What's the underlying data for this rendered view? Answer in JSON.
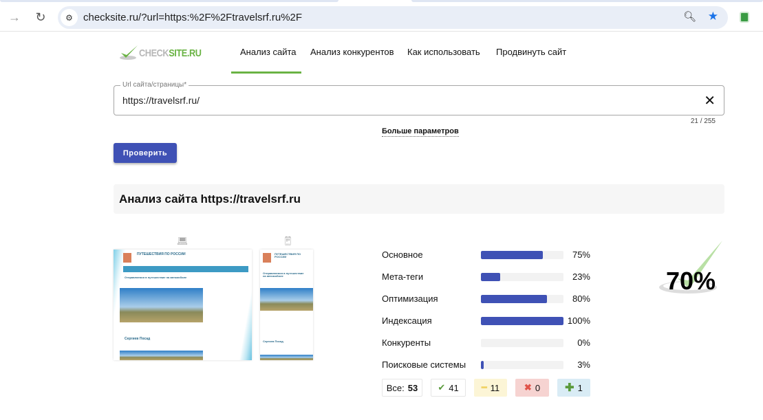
{
  "browser": {
    "url": "checksite.ru/?url=https:%2F%2Ftravelsrf.ru%2F",
    "icons": [
      "back-arrow-icon",
      "reload-icon",
      "site-info-icon",
      "zoom-icon",
      "bookmark-star-icon",
      "extension-icon"
    ],
    "accent": "#1a73e8"
  },
  "logo": {
    "prefix": "CHECK",
    "suffix": "SITE.RU"
  },
  "nav": {
    "items": [
      {
        "label": "Анализ сайта",
        "active": true
      },
      {
        "label": "Анализ конкурентов"
      },
      {
        "label": "Как использовать"
      },
      {
        "label": "Продвинуть сайт"
      }
    ]
  },
  "form": {
    "label": "Url сайта/страницы*",
    "value": "https://travelsrf.ru/",
    "counter": "21 / 255",
    "more": "Больше параметров",
    "submit": "Проверить"
  },
  "result": {
    "title": "Анализ сайта https://travelsrf.ru",
    "score": "70%",
    "preview": {
      "site_title": "ПУТЕШЕСТВИЯ ПО РОССИИ",
      "post1": "Отправляемся в путешествие на автомобиле",
      "post2": "Сергиев Посад"
    },
    "categories": [
      {
        "label": "Основное",
        "value": 75,
        "text": "75%"
      },
      {
        "label": "Мета-теги",
        "value": 23,
        "text": "23%"
      },
      {
        "label": "Оптимизация",
        "value": 80,
        "text": "80%"
      },
      {
        "label": "Индексация",
        "value": 100,
        "text": "100%"
      },
      {
        "label": "Конкуренты",
        "value": 0,
        "text": "0%"
      },
      {
        "label": "Поисковые системы",
        "value": 3,
        "text": "3%"
      }
    ],
    "totals": {
      "all_label": "Все:",
      "all": "53",
      "passed": "41",
      "warnings": "11",
      "errors": "0",
      "extra": "1"
    }
  },
  "colors": {
    "primary": "#3f51b5",
    "green": "#6ab344",
    "warn_bg": "#fcf5d6",
    "error_bg": "#f6d3d1",
    "info_bg": "#d9ecf5"
  }
}
